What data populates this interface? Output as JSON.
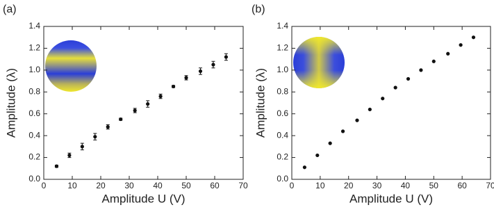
{
  "chart_data": [
    {
      "type": "scatter",
      "panel_label": "(a)",
      "xlabel": "Amplitude U (V)",
      "ylabel": "Amplitude (λ)",
      "x": [
        4.5,
        9,
        13.5,
        18,
        22.5,
        27,
        32,
        36.5,
        41,
        45.5,
        50,
        55,
        59.5,
        64
      ],
      "series": [
        {
          "color": "#111111",
          "values": [
            0.12,
            0.22,
            0.3,
            0.39,
            0.48,
            0.55,
            0.63,
            0.69,
            0.76,
            0.85,
            0.93,
            0.99,
            1.05,
            1.12
          ],
          "errors": [
            0.01,
            0.02,
            0.03,
            0.03,
            0.02,
            0.01,
            0.02,
            0.03,
            0.02,
            0.01,
            0.02,
            0.03,
            0.03,
            0.03
          ]
        }
      ],
      "xlim": [
        0,
        70
      ],
      "xticks": [
        0,
        10,
        20,
        30,
        40,
        50,
        60,
        70
      ],
      "ylim": [
        0,
        1.4
      ],
      "yticks": [
        {
          "value": 0,
          "label": "0.0"
        },
        {
          "value": 0.2,
          "label": "0.2"
        },
        {
          "value": 0.4,
          "label": "0.4"
        },
        {
          "value": 0.6,
          "label": "0.6"
        },
        {
          "value": 0.8,
          "label": "0.8"
        },
        {
          "value": 1,
          "label": "1.0"
        },
        {
          "value": 1.2,
          "label": "1.2"
        },
        {
          "value": 1.4,
          "label": "1.4"
        }
      ]
    },
    {
      "type": "scatter",
      "panel_label": "(b)",
      "xlabel": "Amplitude U (V)",
      "ylabel": "Amplitude (λ)",
      "x": [
        4.5,
        9,
        13.5,
        18,
        23,
        27.5,
        32,
        36.5,
        41,
        45.5,
        50,
        55,
        59.5,
        64
      ],
      "series": [
        {
          "color": "#111111",
          "values": [
            0.11,
            0.22,
            0.33,
            0.44,
            0.54,
            0.64,
            0.74,
            0.84,
            0.92,
            1.0,
            1.08,
            1.15,
            1.23,
            1.3
          ]
        }
      ],
      "xlim": [
        0,
        70
      ],
      "xticks": [
        0,
        10,
        20,
        30,
        40,
        50,
        60,
        70
      ],
      "ylim": [
        0,
        1.4
      ],
      "yticks": [
        {
          "value": 0,
          "label": "0.0"
        },
        {
          "value": 0.2,
          "label": "0.2"
        },
        {
          "value": 0.4,
          "label": "0.4"
        },
        {
          "value": 0.6,
          "label": "0.6"
        },
        {
          "value": 0.8,
          "label": "0.8"
        },
        {
          "value": 1,
          "label": "1.0"
        },
        {
          "value": 1.2,
          "label": "1.2"
        },
        {
          "value": 1.4,
          "label": "1.4"
        }
      ]
    }
  ]
}
